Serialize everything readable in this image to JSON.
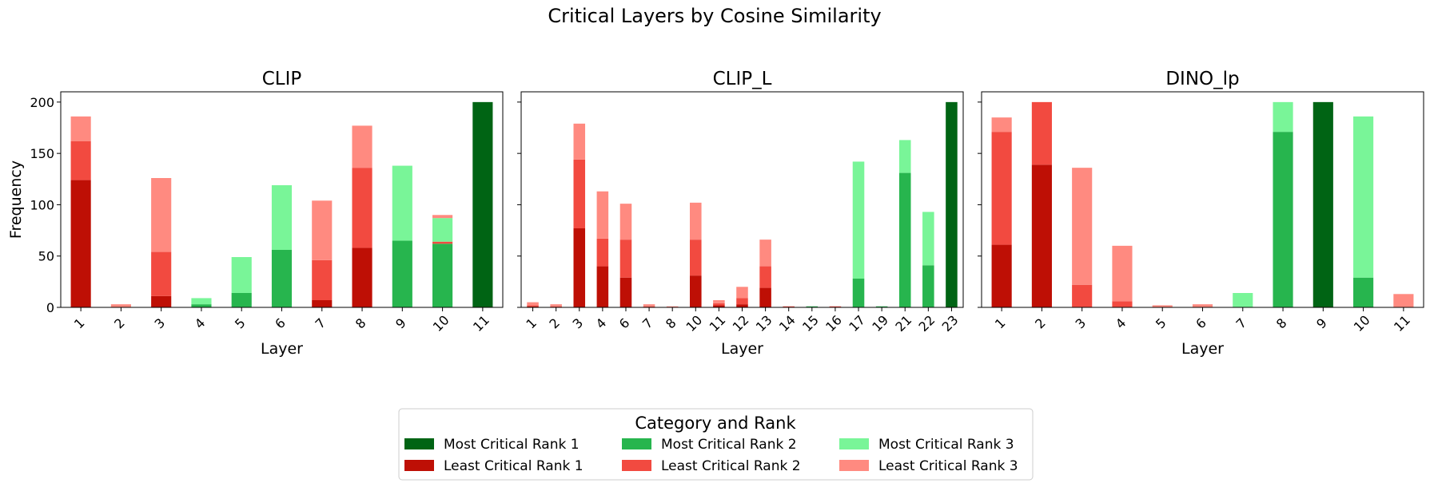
{
  "figure": {
    "title": "Critical Layers by Cosine Similarity"
  },
  "legend": {
    "title": "Category and Rank",
    "placement": "bottom-center",
    "entries": [
      {
        "label": "Most Critical Rank 1",
        "color": "#006414"
      },
      {
        "label": "Least Critical Rank 1",
        "color": "#be0f05"
      },
      {
        "label": "Most Critical Rank 2",
        "color": "#27b54e"
      },
      {
        "label": "Least Critical Rank 2",
        "color": "#f24a40"
      },
      {
        "label": "Most Critical Rank 3",
        "color": "#79f598"
      },
      {
        "label": "Least Critical Rank 3",
        "color": "#ff8a80"
      }
    ]
  },
  "chart_data": [
    {
      "type": "bar",
      "stacked": true,
      "title": "CLIP",
      "xlabel": "Layer",
      "ylabel": "Frequency",
      "ylim": [
        0,
        210
      ],
      "yticks": [
        0,
        50,
        100,
        150,
        200
      ],
      "grid": false,
      "categories": [
        "1",
        "2",
        "3",
        "4",
        "5",
        "6",
        "7",
        "8",
        "9",
        "10",
        "11"
      ],
      "series": [
        {
          "name": "Most Critical Rank 1",
          "color": "#006414",
          "values": [
            0,
            0,
            0,
            0,
            0,
            0,
            0,
            0,
            0,
            0,
            200
          ]
        },
        {
          "name": "Least Critical Rank 1",
          "color": "#be0f05",
          "values": [
            124,
            0,
            11,
            0,
            0,
            0,
            7,
            58,
            0,
            0,
            0
          ]
        },
        {
          "name": "Most Critical Rank 2",
          "color": "#27b54e",
          "values": [
            0,
            0,
            0,
            3,
            14,
            56,
            0,
            0,
            65,
            62,
            0
          ]
        },
        {
          "name": "Least Critical Rank 2",
          "color": "#f24a40",
          "values": [
            38,
            0,
            43,
            0,
            0,
            0,
            39,
            78,
            0,
            2,
            0
          ]
        },
        {
          "name": "Most Critical Rank 3",
          "color": "#79f598",
          "values": [
            0,
            0,
            0,
            6,
            35,
            63,
            0,
            0,
            73,
            23,
            0
          ]
        },
        {
          "name": "Least Critical Rank 3",
          "color": "#ff8a80",
          "values": [
            24,
            3,
            72,
            0,
            0,
            0,
            58,
            41,
            0,
            3,
            0
          ]
        }
      ]
    },
    {
      "type": "bar",
      "stacked": true,
      "title": "CLIP_L",
      "xlabel": "Layer",
      "ylabel": "",
      "ylim": [
        0,
        210
      ],
      "yticks": [
        0,
        50,
        100,
        150,
        200
      ],
      "grid": false,
      "categories": [
        "1",
        "2",
        "3",
        "4",
        "6",
        "7",
        "8",
        "10",
        "11",
        "12",
        "13",
        "14",
        "15",
        "16",
        "17",
        "19",
        "21",
        "22",
        "23"
      ],
      "series": [
        {
          "name": "Most Critical Rank 1",
          "color": "#006414",
          "values": [
            0,
            0,
            0,
            0,
            0,
            0,
            0,
            0,
            0,
            0,
            0,
            0,
            0,
            0,
            0,
            0,
            0,
            0,
            200
          ]
        },
        {
          "name": "Least Critical Rank 1",
          "color": "#be0f05",
          "values": [
            1,
            0,
            77,
            40,
            29,
            0,
            0,
            31,
            2,
            3,
            19,
            0,
            0,
            0,
            0,
            0,
            0,
            0,
            0
          ]
        },
        {
          "name": "Most Critical Rank 2",
          "color": "#27b54e",
          "values": [
            0,
            0,
            0,
            0,
            0,
            0,
            0,
            0,
            0,
            0,
            0,
            0,
            1,
            0,
            28,
            1,
            131,
            41,
            0
          ]
        },
        {
          "name": "Least Critical Rank 2",
          "color": "#f24a40",
          "values": [
            1,
            1,
            67,
            27,
            37,
            1,
            0,
            35,
            2,
            6,
            21,
            1,
            0,
            1,
            0,
            0,
            0,
            0,
            0
          ]
        },
        {
          "name": "Most Critical Rank 3",
          "color": "#79f598",
          "values": [
            0,
            0,
            0,
            0,
            0,
            0,
            0,
            0,
            0,
            0,
            0,
            0,
            0,
            0,
            114,
            0,
            32,
            52,
            0
          ]
        },
        {
          "name": "Least Critical Rank 3",
          "color": "#ff8a80",
          "values": [
            3,
            2,
            35,
            46,
            35,
            2,
            1,
            36,
            3,
            11,
            26,
            0,
            0,
            0,
            0,
            0,
            0,
            0,
            0
          ]
        }
      ]
    },
    {
      "type": "bar",
      "stacked": true,
      "title": "DINO_lp",
      "xlabel": "Layer",
      "ylabel": "",
      "ylim": [
        0,
        210
      ],
      "yticks": [
        0,
        50,
        100,
        150,
        200
      ],
      "grid": false,
      "categories": [
        "1",
        "2",
        "3",
        "4",
        "5",
        "6",
        "7",
        "8",
        "9",
        "10",
        "11"
      ],
      "series": [
        {
          "name": "Most Critical Rank 1",
          "color": "#006414",
          "values": [
            0,
            0,
            0,
            0,
            0,
            0,
            0,
            0,
            200,
            0,
            0
          ]
        },
        {
          "name": "Least Critical Rank 1",
          "color": "#be0f05",
          "values": [
            61,
            139,
            0,
            0,
            0,
            0,
            0,
            0,
            0,
            0,
            0
          ]
        },
        {
          "name": "Most Critical Rank 2",
          "color": "#27b54e",
          "values": [
            0,
            0,
            0,
            0,
            0,
            0,
            0,
            171,
            0,
            29,
            0
          ]
        },
        {
          "name": "Least Critical Rank 2",
          "color": "#f24a40",
          "values": [
            110,
            61,
            22,
            6,
            0,
            0,
            0,
            0,
            0,
            0,
            0
          ]
        },
        {
          "name": "Most Critical Rank 3",
          "color": "#79f598",
          "values": [
            0,
            0,
            0,
            0,
            0,
            0,
            14,
            29,
            0,
            157,
            0
          ]
        },
        {
          "name": "Least Critical Rank 3",
          "color": "#ff8a80",
          "values": [
            14,
            0,
            114,
            54,
            2,
            3,
            0,
            0,
            0,
            0,
            13
          ]
        }
      ]
    }
  ]
}
